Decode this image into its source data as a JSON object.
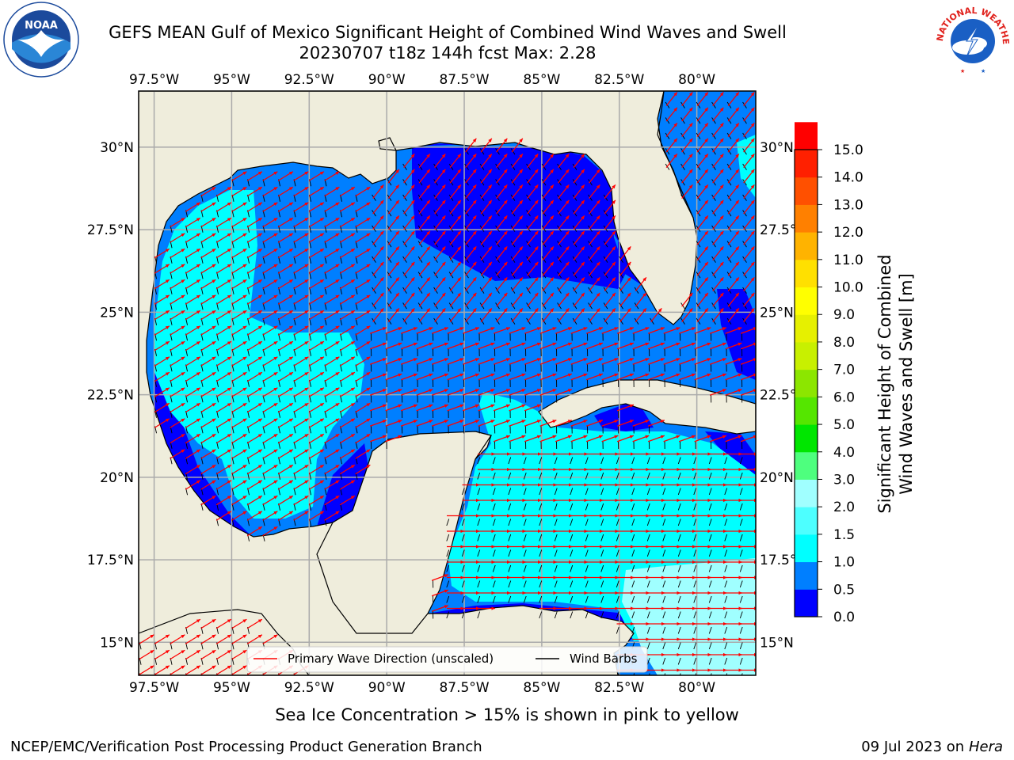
{
  "title": {
    "line1": "GEFS MEAN Gulf of Mexico Significant Height of Combined Wind Waves and Swell",
    "line2": "20230707 t18z 144h fcst   Max: 2.28"
  },
  "map": {
    "lon_ticks": [
      "97.5°W",
      "95°W",
      "92.5°W",
      "90°W",
      "87.5°W",
      "85°W",
      "82.5°W",
      "80°W"
    ],
    "lat_ticks": [
      "30°N",
      "27.5°N",
      "25°N",
      "22.5°N",
      "20°N",
      "17.5°N",
      "15°N"
    ],
    "lon_values": [
      -97.5,
      -95,
      -92.5,
      -90,
      -87.5,
      -85,
      -82.5,
      -80
    ],
    "lat_values": [
      30,
      27.5,
      25,
      22.5,
      20,
      17.5,
      15
    ],
    "lon_range": [
      -98,
      -78.1
    ],
    "lat_range": [
      14,
      31.7
    ],
    "grid": true,
    "land_color": "#efeddc",
    "ocean_color": "#007fff"
  },
  "legend": {
    "wave_label": "Primary Wave Direction (unscaled)",
    "barb_label": "Wind Barbs",
    "wave_color": "#ff0000",
    "barb_color": "#000000"
  },
  "colorbar": {
    "label_line1": "Significant Height of Combined",
    "label_line2": "Wind Waves and Swell [m]",
    "tick_labels": [
      "0.0",
      "0.5",
      "1.0",
      "1.5",
      "2.0",
      "3.0",
      "4.0",
      "5.0",
      "6.0",
      "7.0",
      "8.0",
      "9.0",
      "10.0",
      "11.0",
      "12.0",
      "13.0",
      "14.0",
      "15.0"
    ],
    "colors": [
      "#0000ff",
      "#007fff",
      "#00ffff",
      "#4dffff",
      "#a0ffff",
      "#4eff7e",
      "#00e600",
      "#55e600",
      "#8ce600",
      "#c8f000",
      "#e6f000",
      "#ffff00",
      "#ffe000",
      "#ffb300",
      "#ff8000",
      "#ff5000",
      "#ff2000",
      "#ff0000"
    ]
  },
  "ice_note": "Sea Ice Concentration > 15% is shown in pink to yellow",
  "footer": {
    "left": "NCEP/EMC/Verification Post Processing Product Generation Branch",
    "right_date": "09 Jul 2023 on ",
    "right_machine": "Hera"
  },
  "logos": {
    "noaa_text": "NOAA",
    "nws_text": "NATIONAL WEATHER SERVICE"
  }
}
